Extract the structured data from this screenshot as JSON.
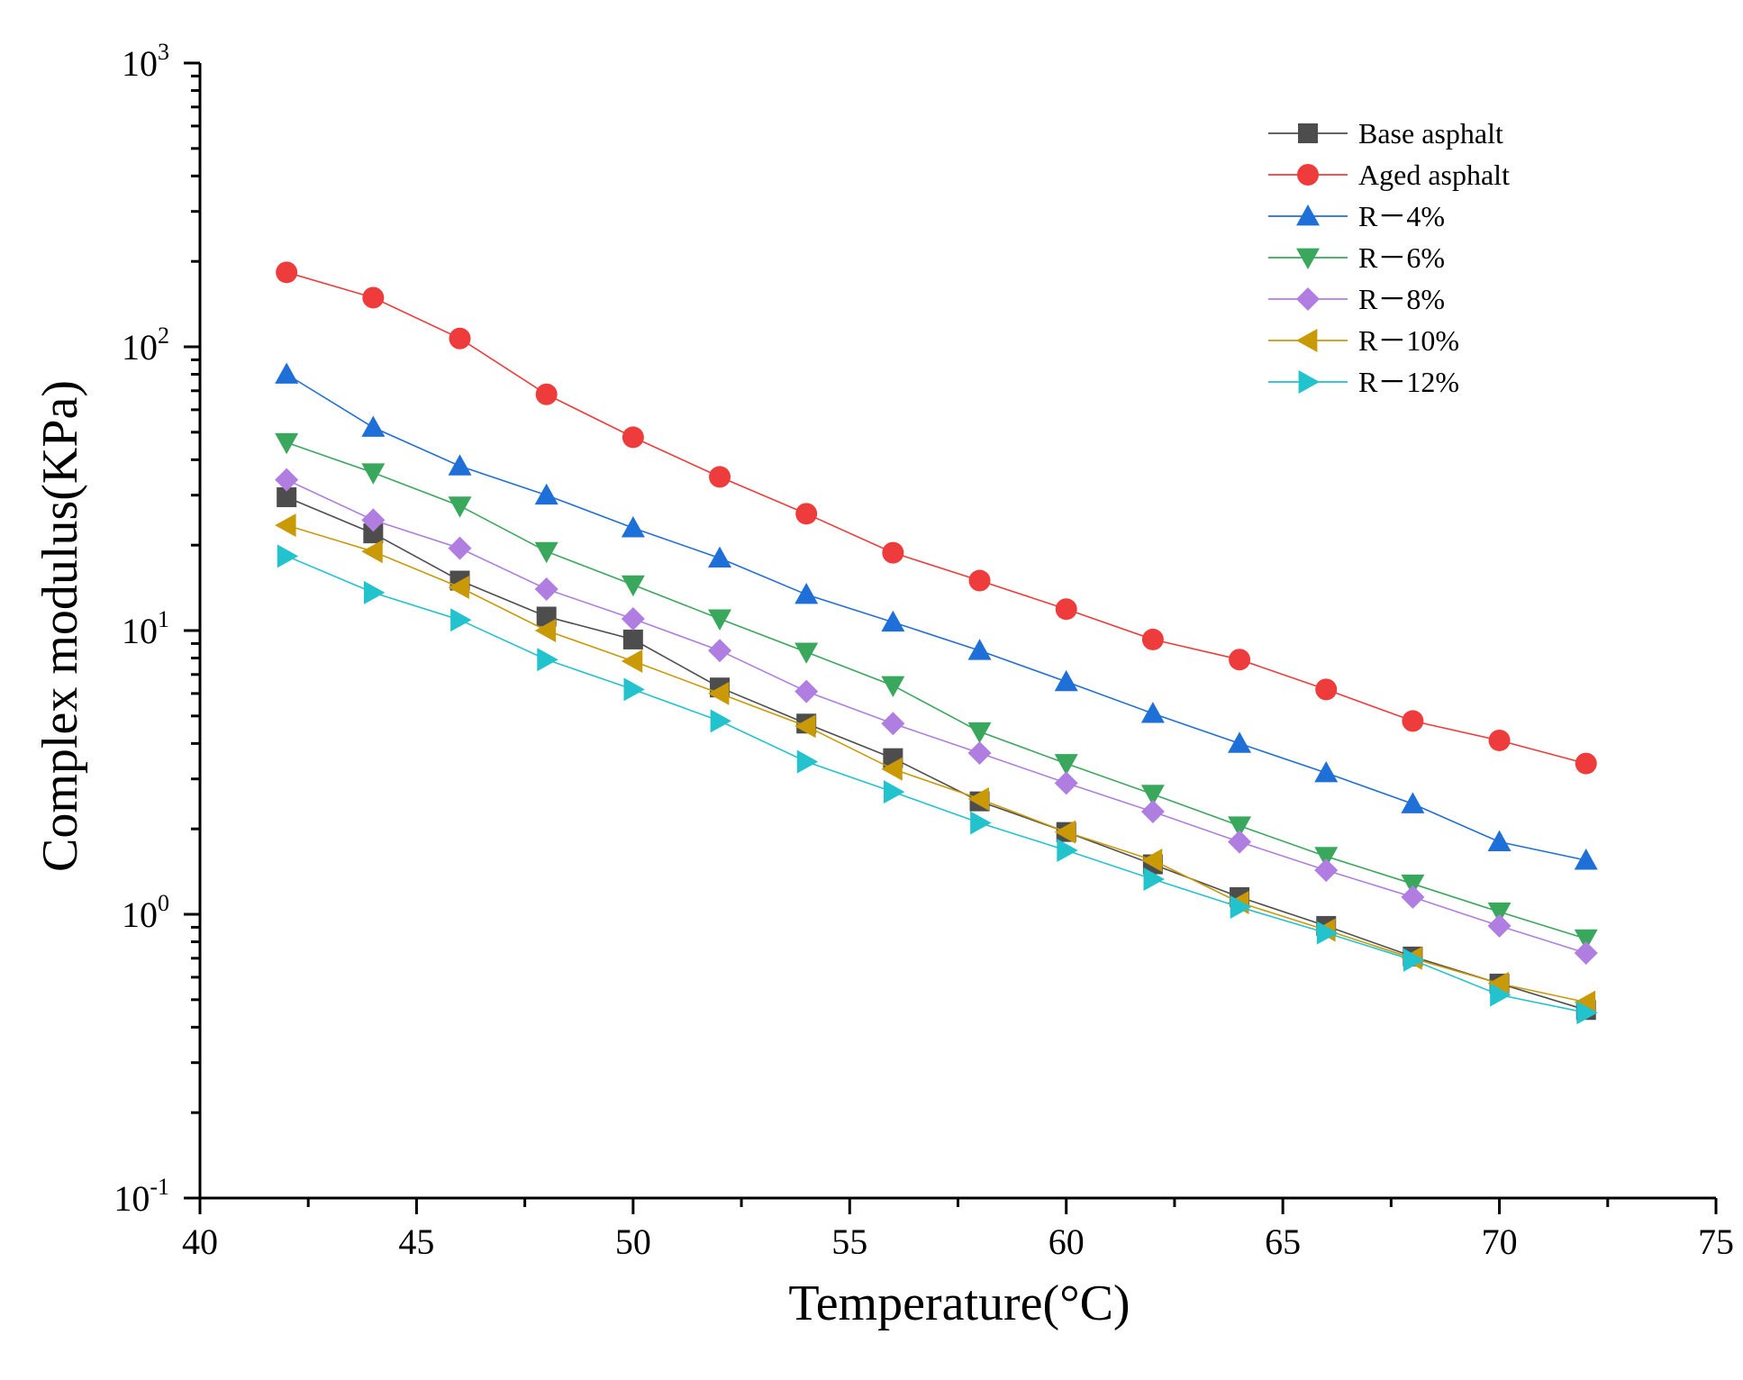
{
  "chart_data": {
    "type": "line",
    "title": "",
    "xlabel": "Temperature(°C)",
    "ylabel": "Complex modulus(KPa)",
    "xlim": [
      40,
      75
    ],
    "ylim": [
      0.1,
      1000
    ],
    "yscale": "log",
    "grid": false,
    "legend_position": "top-right",
    "x_ticks": [
      "40",
      "45",
      "50",
      "55",
      "60",
      "65",
      "70",
      "75"
    ],
    "y_ticks": [
      {
        "base": "10",
        "exp": "-1"
      },
      {
        "base": "10",
        "exp": "0"
      },
      {
        "base": "10",
        "exp": "1"
      },
      {
        "base": "10",
        "exp": "2"
      },
      {
        "base": "10",
        "exp": "3"
      }
    ],
    "x": [
      42,
      44,
      46,
      48,
      50,
      52,
      54,
      56,
      58,
      60,
      62,
      64,
      66,
      68,
      70,
      72
    ],
    "series": [
      {
        "name": "Base asphalt",
        "color": "#4d4d4d",
        "marker": "square",
        "values": [
          29.5,
          22,
          15,
          11.2,
          9.3,
          6.3,
          4.7,
          3.55,
          2.5,
          1.95,
          1.5,
          1.15,
          0.91,
          0.71,
          0.57,
          0.46
        ]
      },
      {
        "name": "Aged asphalt",
        "color": "#ee3b3b",
        "marker": "circle",
        "values": [
          183,
          149,
          107,
          68,
          48,
          34.8,
          25.8,
          18.8,
          15,
          11.9,
          9.3,
          7.9,
          6.2,
          4.8,
          4.1,
          3.4
        ]
      },
      {
        "name": "R－4%",
        "color": "#1f6fd8",
        "marker": "triangle-up",
        "values": [
          80,
          52,
          38,
          30,
          23,
          18,
          13.4,
          10.7,
          8.5,
          6.6,
          5.1,
          4.0,
          3.15,
          2.45,
          1.8,
          1.55
        ]
      },
      {
        "name": "R－6%",
        "color": "#3aa85c",
        "marker": "triangle-down",
        "values": [
          46,
          36,
          27.5,
          19,
          14.5,
          11,
          8.4,
          6.4,
          4.4,
          3.4,
          2.65,
          2.05,
          1.6,
          1.28,
          1.02,
          0.82
        ]
      },
      {
        "name": "R－8%",
        "color": "#b07ee0",
        "marker": "diamond",
        "values": [
          34,
          24.5,
          19.5,
          14,
          11,
          8.5,
          6.1,
          4.7,
          3.7,
          2.9,
          2.3,
          1.8,
          1.43,
          1.15,
          0.91,
          0.73
        ]
      },
      {
        "name": "R－10%",
        "color": "#c99a06",
        "marker": "triangle-left",
        "values": [
          23.5,
          19,
          14.2,
          10,
          7.8,
          6.0,
          4.6,
          3.25,
          2.55,
          1.95,
          1.55,
          1.1,
          0.88,
          0.7,
          0.57,
          0.49
        ]
      },
      {
        "name": "R－12%",
        "color": "#22c3cc",
        "marker": "triangle-right",
        "values": [
          18.3,
          13.6,
          10.9,
          7.9,
          6.2,
          4.8,
          3.45,
          2.7,
          2.1,
          1.68,
          1.33,
          1.06,
          0.86,
          0.69,
          0.52,
          0.45
        ]
      }
    ]
  }
}
